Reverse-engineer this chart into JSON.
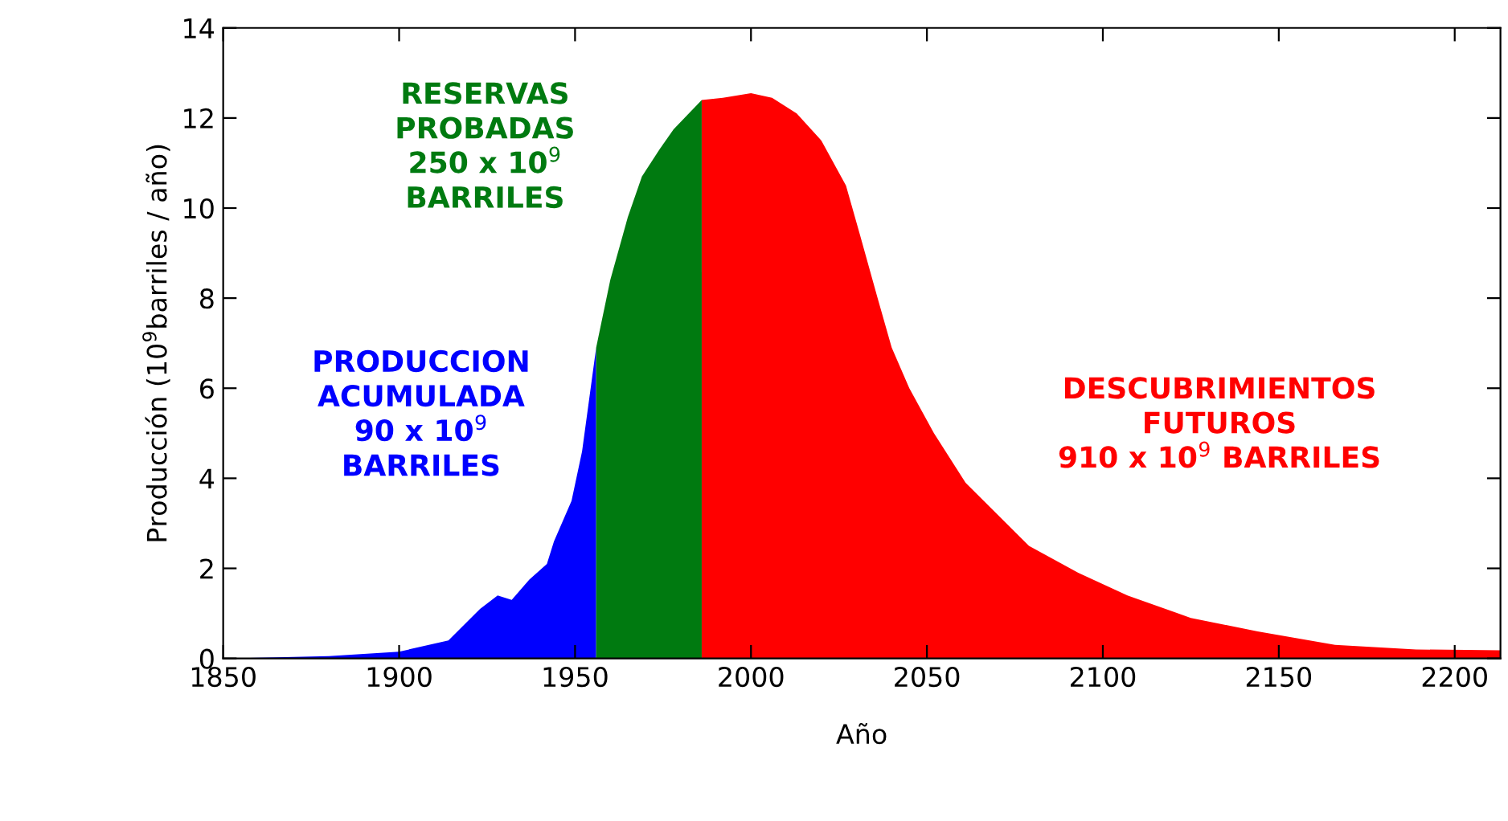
{
  "chart_data": {
    "type": "area",
    "xlabel": "Año",
    "ylabel": "Producción (10$^{9}$barriles / año)",
    "xlim": [
      1850,
      2213
    ],
    "ylim": [
      0,
      14
    ],
    "xticks": [
      1850,
      1900,
      1950,
      2000,
      2050,
      2100,
      2150,
      2200
    ],
    "yticks": [
      0,
      2,
      4,
      6,
      8,
      10,
      12,
      14
    ],
    "grid": false,
    "legend": false,
    "series": [
      {
        "color": "#0000ff",
        "x": [
          1850,
          1880,
          1900,
          1914,
          1923,
          1928,
          1932,
          1937,
          1942,
          1944,
          1949,
          1952,
          1956
        ],
        "values": [
          0,
          0.05,
          0.15,
          0.4,
          1.1,
          1.4,
          1.3,
          1.75,
          2.1,
          2.6,
          3.5,
          4.6,
          6.9
        ]
      },
      {
        "color": "#007a10",
        "x": [
          1956,
          1960,
          1965,
          1969,
          1974,
          1978,
          1986
        ],
        "values": [
          6.9,
          8.4,
          9.8,
          10.7,
          11.3,
          11.75,
          12.4
        ]
      },
      {
        "color": "#ff0000",
        "x": [
          1986,
          1992,
          2000,
          2006,
          2013,
          2020,
          2027,
          2031,
          2036,
          2040,
          2045,
          2052,
          2061,
          2070,
          2079,
          2093,
          2107,
          2125,
          2144,
          2166,
          2189,
          2213
        ],
        "values": [
          12.4,
          12.45,
          12.55,
          12.45,
          12.1,
          11.5,
          10.5,
          9.4,
          8.0,
          6.9,
          6.0,
          5.0,
          3.9,
          3.2,
          2.5,
          1.9,
          1.4,
          0.9,
          0.6,
          0.3,
          0.2,
          0.18
        ]
      }
    ],
    "annotations": [
      "PRODUCCION\nACUMULADA\n90 x 10$^{9}$\nBARRILES",
      "RESERVAS\nPROBADAS\n250 x 10$^{9}$\nBARRILES",
      "DESCUBRIMIENTOS\nFUTUROS\n910 x 10$^{9}$ BARRILES"
    ]
  }
}
